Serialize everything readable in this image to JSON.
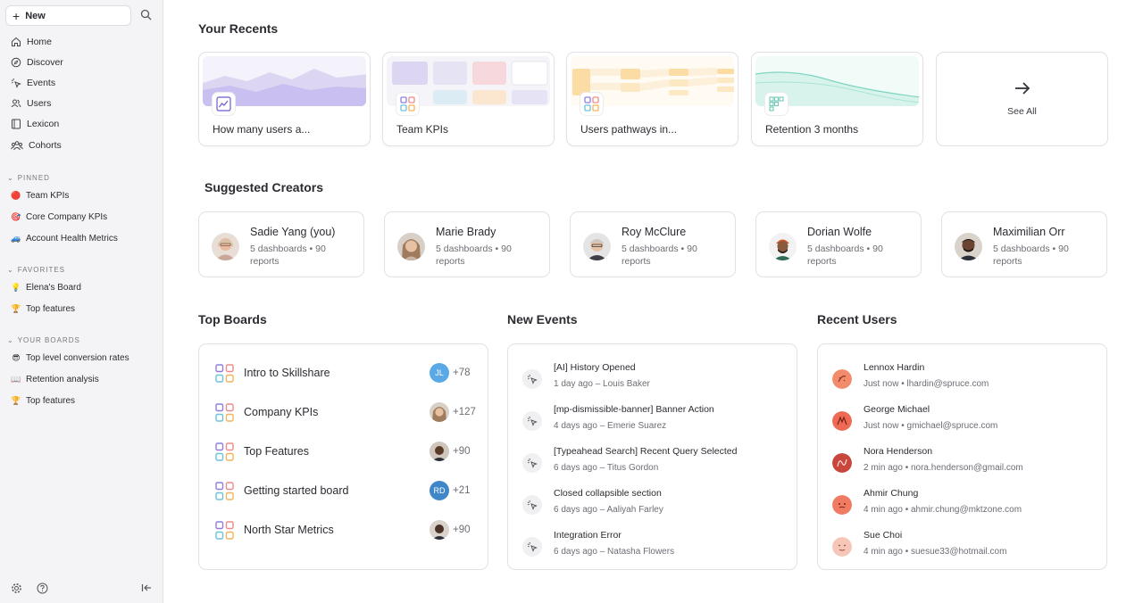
{
  "sidebar": {
    "new_label": "New",
    "nav": [
      {
        "label": "Home",
        "icon": "home-icon"
      },
      {
        "label": "Discover",
        "icon": "compass-icon"
      },
      {
        "label": "Events",
        "icon": "cursor-click-icon"
      },
      {
        "label": "Users",
        "icon": "users-icon"
      },
      {
        "label": "Lexicon",
        "icon": "book-icon"
      },
      {
        "label": "Cohorts",
        "icon": "cohorts-icon"
      }
    ],
    "pinned_title": "PINNED",
    "pinned": [
      {
        "label": "Team KPIs",
        "emoji": "🔴"
      },
      {
        "label": "Core Company KPIs",
        "emoji": "🎯"
      },
      {
        "label": "Account Health Metrics",
        "emoji": "🚙"
      }
    ],
    "favorites_title": "FAVORITES",
    "favorites": [
      {
        "label": "Elena's Board",
        "emoji": "💡"
      },
      {
        "label": "Top features",
        "emoji": "🏆"
      }
    ],
    "your_boards_title": "YOUR BOARDS",
    "your_boards": [
      {
        "label": "Top level conversion rates",
        "emoji": "😎"
      },
      {
        "label": "Retention analysis",
        "emoji": "📖"
      },
      {
        "label": "Top features",
        "emoji": "🏆"
      }
    ]
  },
  "recents": {
    "title": "Your Recents",
    "items": [
      {
        "label": "How many users a...",
        "icon": "line-chart-icon"
      },
      {
        "label": "Team KPIs",
        "icon": "board-grid-icon"
      },
      {
        "label": "Users pathways in...",
        "icon": "board-grid-icon"
      },
      {
        "label": "Retention 3 months",
        "icon": "retention-grid-icon"
      }
    ],
    "see_all": "See All"
  },
  "creators": {
    "title": "Suggested Creators",
    "items": [
      {
        "name": "Sadie Yang (you)",
        "meta": "5 dashboards • 90 reports"
      },
      {
        "name": "Marie Brady",
        "meta": "5 dashboards • 90 reports"
      },
      {
        "name": "Roy McClure",
        "meta": "5 dashboards • 90 reports"
      },
      {
        "name": "Dorian Wolfe",
        "meta": "5 dashboards • 90 reports"
      },
      {
        "name": "Maximilian Orr",
        "meta": "5 dashboards • 90 reports"
      }
    ]
  },
  "top_boards": {
    "title": "Top Boards",
    "items": [
      {
        "name": "Intro to Skillshare",
        "avatar": "JL",
        "avatar_color": "#5aa9e6",
        "count": "+78"
      },
      {
        "name": "Company KPIs",
        "avatar": "",
        "avatar_color": "#c79a7a",
        "count": "+127"
      },
      {
        "name": "Top Features",
        "avatar": "",
        "avatar_color": "#5a3b2a",
        "count": "+90"
      },
      {
        "name": "Getting started board",
        "avatar": "RD",
        "avatar_color": "#3f87c8",
        "count": "+21"
      },
      {
        "name": "North Star Metrics",
        "avatar": "",
        "avatar_color": "#4a3226",
        "count": "+90"
      }
    ]
  },
  "new_events": {
    "title": "New Events",
    "items": [
      {
        "name": "[AI] History Opened",
        "sub": "1 day ago – Louis Baker"
      },
      {
        "name": "[mp-dismissible-banner] Banner Action",
        "sub": "4 days ago – Emerie Suarez"
      },
      {
        "name": "[Typeahead Search] Recent Query Selected",
        "sub": "6 days ago – Titus Gordon"
      },
      {
        "name": "Closed collapsible section",
        "sub": "6 days ago – Aaliyah Farley"
      },
      {
        "name": "Integration Error",
        "sub": "6 days ago – Natasha Flowers"
      }
    ]
  },
  "recent_users": {
    "title": "Recent Users",
    "items": [
      {
        "name": "Lennox Hardin",
        "sub": "Just now • lhardin@spruce.com",
        "color": "#f28b6b"
      },
      {
        "name": "George Michael",
        "sub": "Just now • gmichael@spruce.com",
        "color": "#ee6a55"
      },
      {
        "name": "Nora Henderson",
        "sub": "2 min ago • nora.henderson@gmail.com",
        "color": "#c9463d"
      },
      {
        "name": "Ahmir Chung",
        "sub": "4 min ago • ahmir.chung@mktzone.com",
        "color": "#f07a62"
      },
      {
        "name": "Sue Choi",
        "sub": "4 min ago • suesue33@hotmail.com",
        "color": "#f6c7b8"
      }
    ]
  }
}
